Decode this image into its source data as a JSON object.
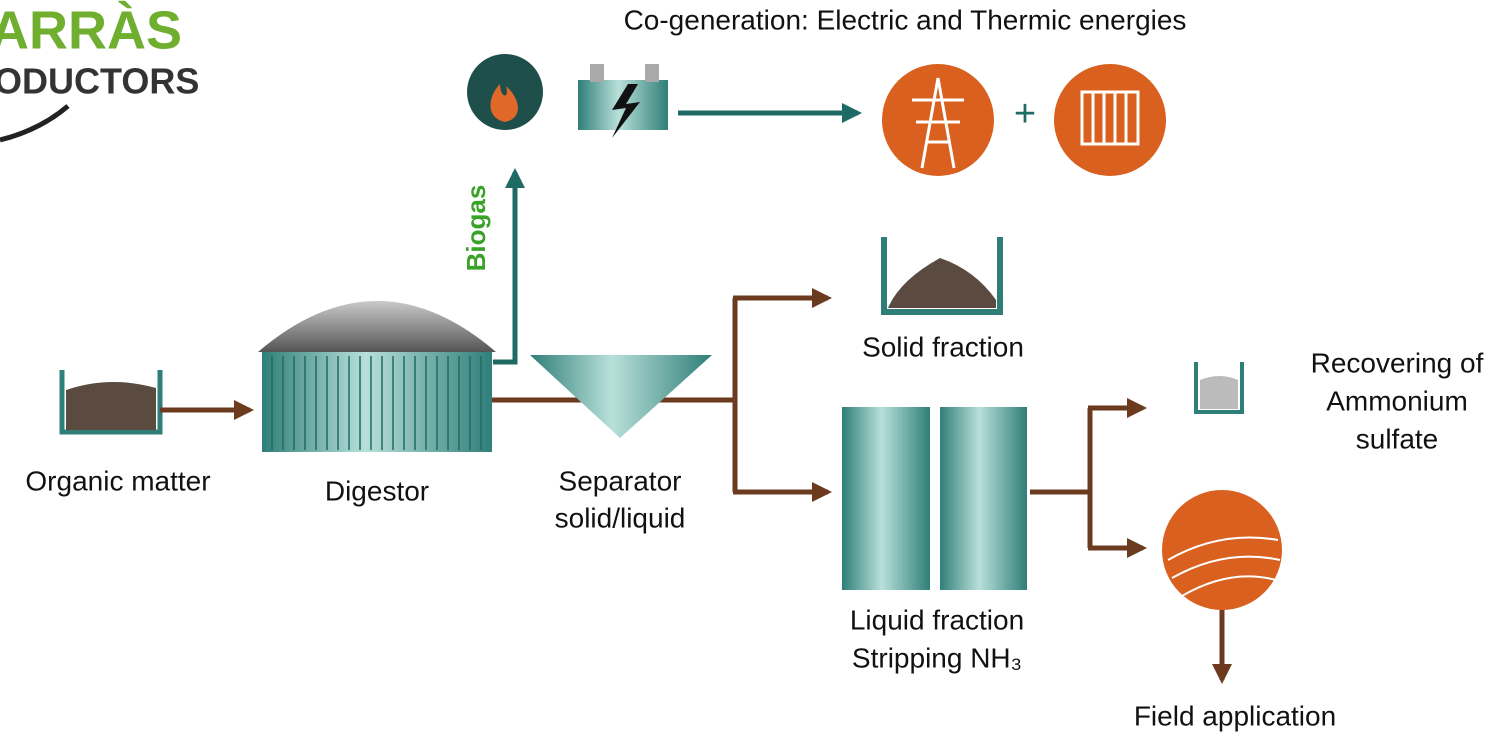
{
  "logo": {
    "lines": [
      "ARRÀS",
      "ODUCTORS"
    ]
  },
  "cogeneration": {
    "title": "Co-generation: Electric and Thermic energies",
    "plus": "+"
  },
  "biogas": "Biogas",
  "nodes": {
    "organic_matter": {
      "lines": [
        "Organic matter"
      ]
    },
    "digestor": {
      "lines": [
        "Digestor"
      ]
    },
    "separator": {
      "lines": [
        "Separator",
        "solid/liquid"
      ]
    },
    "solid_fraction": {
      "lines": [
        "Solid fraction"
      ]
    },
    "liquid_fraction": {
      "lines": [
        "Liquid fraction",
        "Stripping NH₃"
      ]
    },
    "ammonium": {
      "lines": [
        "Recovering of",
        "Ammonium",
        "sulfate"
      ]
    },
    "field": {
      "lines": [
        "Field application"
      ]
    }
  }
}
